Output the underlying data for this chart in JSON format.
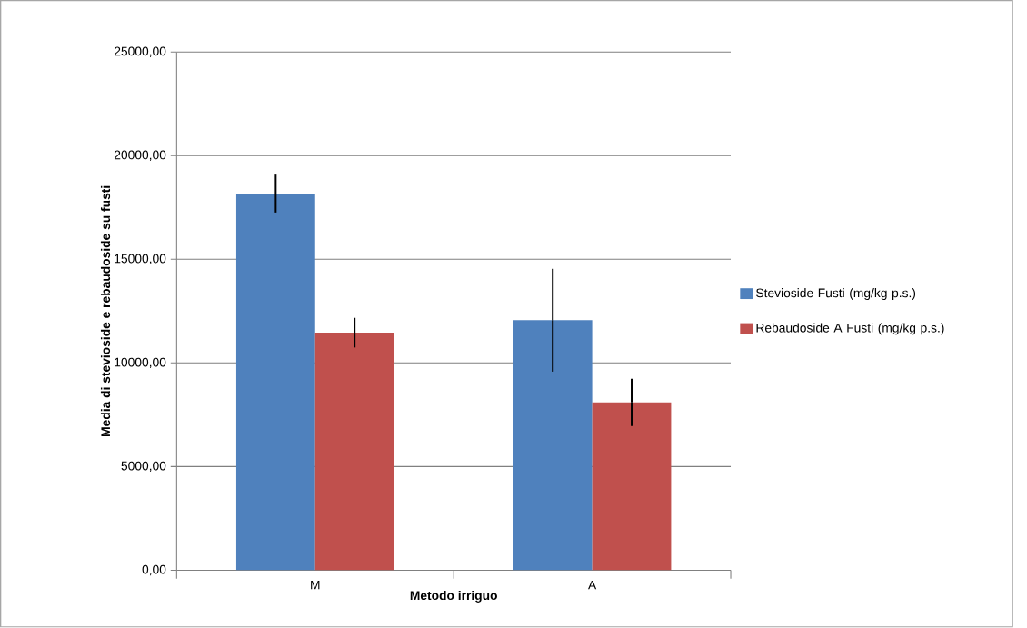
{
  "chart_data": {
    "type": "bar",
    "xlabel": "Metodo irriguo",
    "ylabel": "Media di stevioside e rebaudoside su fusti",
    "categories": [
      "M",
      "A"
    ],
    "series": [
      {
        "name": "Stevioside Fusti (mg/kg p.s.)",
        "color": "#4f81bd",
        "values": [
          18170,
          12060
        ],
        "errors": [
          915,
          2480
        ]
      },
      {
        "name": "Rebaudoside A Fusti (mg/kg p.s.)",
        "color": "#c0504d",
        "values": [
          11460,
          8100
        ],
        "errors": [
          715,
          1140
        ]
      }
    ],
    "ylim": [
      0,
      25000
    ],
    "yticks": [
      {
        "value": 0,
        "label": "0,00"
      },
      {
        "value": 5000,
        "label": "5000,00"
      },
      {
        "value": 10000,
        "label": "10000,00"
      },
      {
        "value": 15000,
        "label": "15000,00"
      },
      {
        "value": 20000,
        "label": "20000,00"
      },
      {
        "value": 25000,
        "label": "25000,00"
      }
    ],
    "grid": "y",
    "legend": "right"
  }
}
